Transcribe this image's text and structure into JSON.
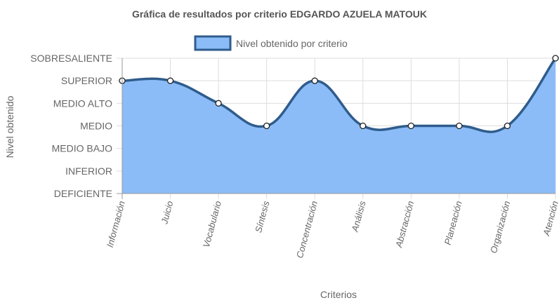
{
  "chart_data": {
    "type": "area",
    "title": "Gráfica de resultados por criterio EDGARDO AZUELA MATOUK",
    "xlabel": "Criterios",
    "ylabel": "Nivel obtenido",
    "levels": [
      "DEFICIENTE",
      "INFERIOR",
      "MEDIO BAJO",
      "MEDIO",
      "MEDIO ALTO",
      "SUPERIOR",
      "SOBRESALIENTE"
    ],
    "categories": [
      "Información",
      "Juicio",
      "Vocabulario",
      "Síntesis",
      "Concentración",
      "Análisis",
      "Abstracción",
      "Planeación",
      "Organización",
      "Atención"
    ],
    "series": [
      {
        "name": "Nivel obtenido por criterio",
        "values": [
          "SUPERIOR",
          "SUPERIOR",
          "MEDIO ALTO",
          "MEDIO",
          "SUPERIOR",
          "MEDIO",
          "MEDIO",
          "MEDIO",
          "MEDIO",
          "SOBRESALIENTE"
        ]
      }
    ],
    "legend_position": "top",
    "grid": true,
    "colors": {
      "fill": "#8bbcf7",
      "line": "#2f5c8c",
      "grid": "#dddddd",
      "axis": "#999999"
    }
  }
}
